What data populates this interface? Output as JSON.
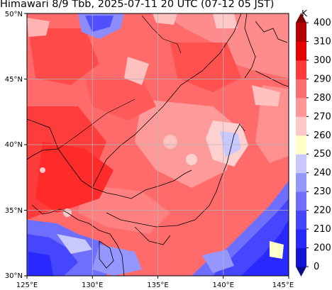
{
  "title": "Himawari 8/9 Tbb, 2025-07-11 20 UTC (07-12 05 JST)",
  "map": {
    "lon_range": [
      125,
      145
    ],
    "lat_range": [
      30,
      50
    ],
    "xticks": [
      "125°E",
      "130°E",
      "135°E",
      "140°E",
      "145°E"
    ],
    "yticks": [
      "30°N",
      "35°N",
      "40°N",
      "45°N",
      "50°N"
    ],
    "gridlines": true
  },
  "colorbar": {
    "unit": "K",
    "ticks": [
      "0",
      "200",
      "210",
      "220",
      "230",
      "240",
      "250",
      "260",
      "270",
      "280",
      "290",
      "300",
      "310",
      "400"
    ],
    "colors": [
      "#0a0a8c",
      "#1414d2",
      "#2828ff",
      "#4646ff",
      "#6e6eff",
      "#9696ff",
      "#c8c8ff",
      "#ffffc8",
      "#ffc8c8",
      "#ff9696",
      "#ff6e6e",
      "#ff3c3c",
      "#e60000",
      "#b40000",
      "#7d0000"
    ]
  }
}
